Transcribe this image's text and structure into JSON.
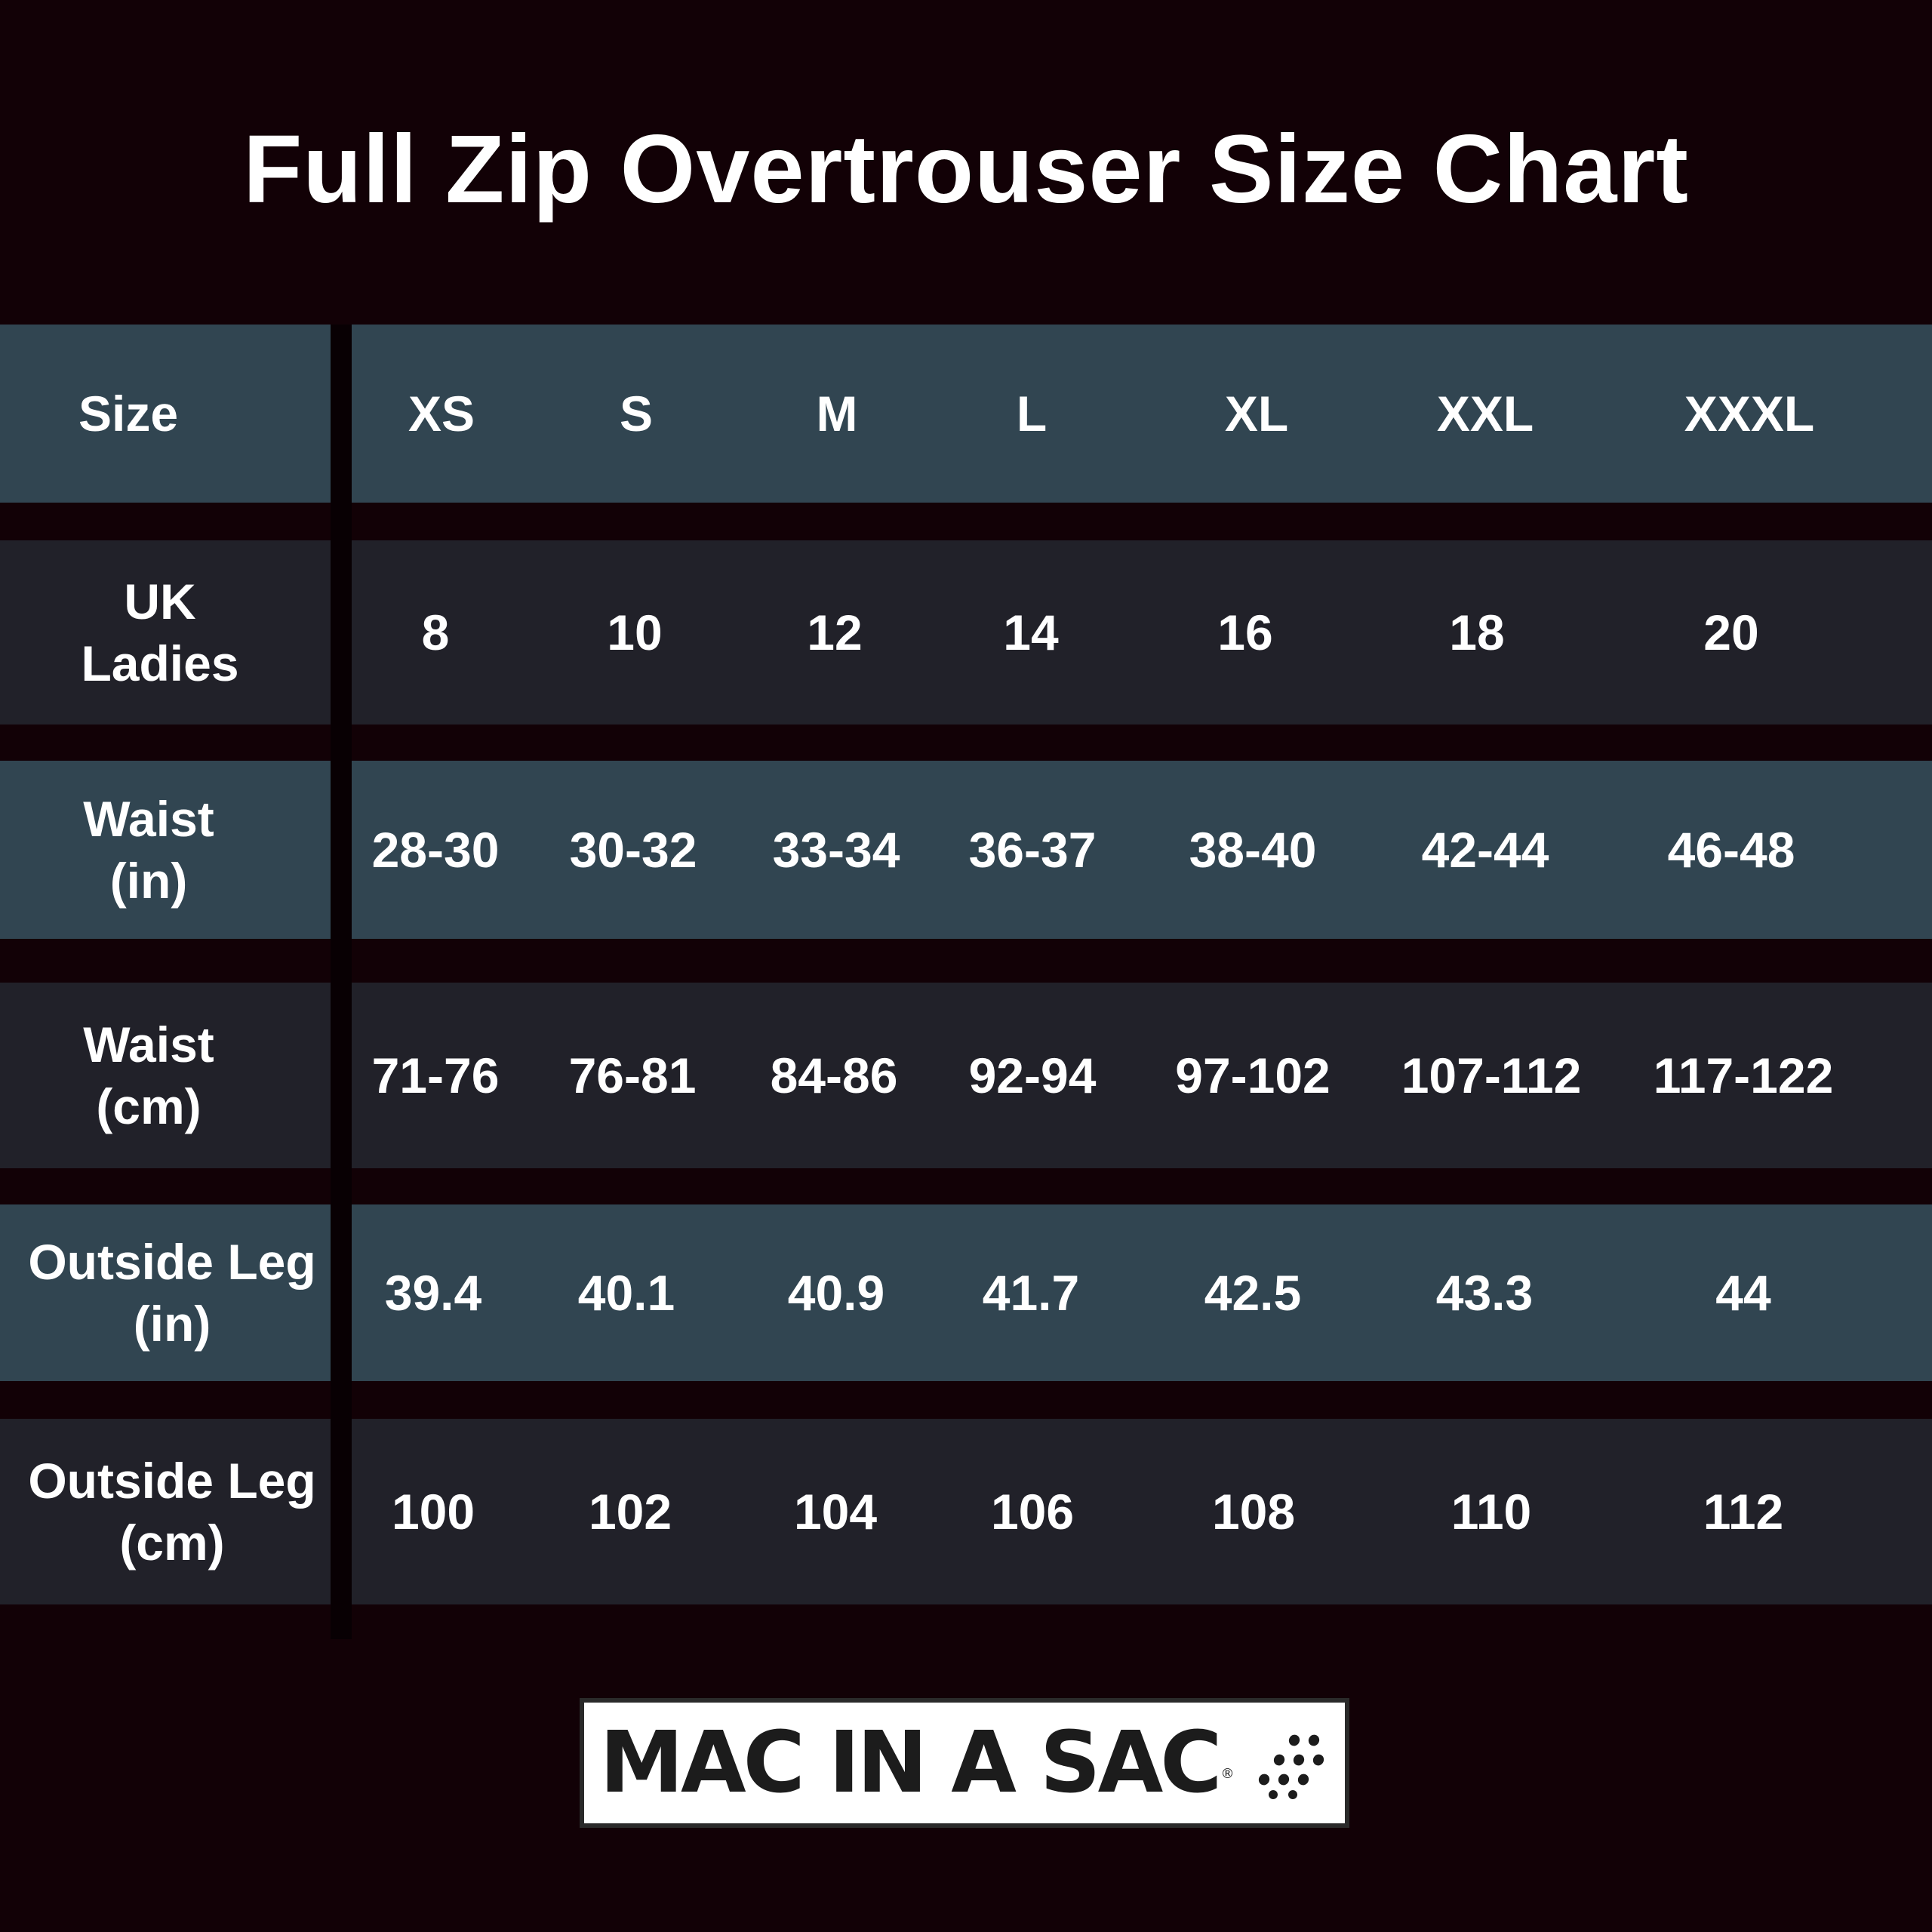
{
  "title": "Full Zip Overtrouser Size Chart",
  "colors": {
    "background": "#120106",
    "row_teal": "#314551",
    "row_dark": "#212129",
    "text": "#ffffff"
  },
  "table": {
    "header": {
      "label": "Size",
      "sizes": [
        "XS",
        "S",
        "M",
        "L",
        "XL",
        "XXL",
        "XXXL"
      ]
    },
    "rows": [
      {
        "label_line1": "UK",
        "label_line2": "Ladies",
        "values": [
          "8",
          "10",
          "12",
          "14",
          "16",
          "18",
          "20"
        ]
      },
      {
        "label_line1": "Waist",
        "label_line2": "(in)",
        "values": [
          "28-30",
          "30-32",
          "33-34",
          "36-37",
          "38-40",
          "42-44",
          "46-48"
        ]
      },
      {
        "label_line1": "Waist",
        "label_line2": "(cm)",
        "values": [
          "71-76",
          "76-81",
          "84-86",
          "92-94",
          "97-102",
          "107-112",
          "117-122"
        ]
      },
      {
        "label_line1": "Outside Leg",
        "label_line2": "(in)",
        "values": [
          "39.4",
          "40.1",
          "40.9",
          "41.7",
          "42.5",
          "43.3",
          "44"
        ]
      },
      {
        "label_line1": "Outside Leg",
        "label_line2": "(cm)",
        "values": [
          "100",
          "102",
          "104",
          "106",
          "108",
          "110",
          "112"
        ]
      }
    ]
  },
  "logo": {
    "text": "MAC IN A SAC",
    "registered": "®",
    "mark_icon": "dots-pattern-icon"
  }
}
